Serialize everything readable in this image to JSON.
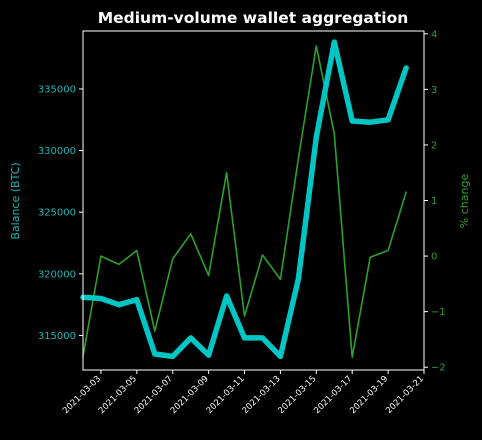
{
  "chart_data": {
    "type": "line",
    "title": "Medium-volume wallet aggregation",
    "ylabel": "Balance (BTC)",
    "y2label": "% change",
    "colors": {
      "axis_left": "#1ab5b5",
      "axis_right": "#2ca02c",
      "balance": "#00c5c5",
      "pct": "#2ca02c",
      "frame": "#ffffff"
    },
    "xlim": [
      "2021-03-02",
      "2021-03-21"
    ],
    "ylim": [
      312200,
      339700
    ],
    "y2lim": [
      -2.05,
      4.05
    ],
    "xticks": [
      "2021-03-03",
      "2021-03-05",
      "2021-03-07",
      "2021-03-09",
      "2021-03-11",
      "2021-03-13",
      "2021-03-15",
      "2021-03-17",
      "2021-03-19",
      "2021-03-21"
    ],
    "yticks": [
      315000,
      320000,
      325000,
      330000,
      335000
    ],
    "y2ticks": [
      -2,
      -1,
      0,
      1,
      2,
      3,
      4
    ],
    "x": [
      "2021-03-02",
      "2021-03-03",
      "2021-03-04",
      "2021-03-05",
      "2021-03-06",
      "2021-03-07",
      "2021-03-08",
      "2021-03-09",
      "2021-03-10",
      "2021-03-11",
      "2021-03-12",
      "2021-03-13",
      "2021-03-14",
      "2021-03-15",
      "2021-03-16",
      "2021-03-17",
      "2021-03-18",
      "2021-03-19",
      "2021-03-20"
    ],
    "series": [
      {
        "axis": "left",
        "values": [
          318100,
          318000,
          317500,
          317900,
          313500,
          313300,
          314800,
          313400,
          318200,
          314800,
          314800,
          313300,
          319600,
          331100,
          338800,
          332400,
          332300,
          332500,
          336700
        ]
      },
      {
        "axis": "right",
        "values": [
          -1.8,
          0.0,
          -0.15,
          0.1,
          -1.35,
          -0.05,
          0.4,
          -0.35,
          1.5,
          -1.08,
          0.02,
          -0.42,
          1.76,
          3.78,
          2.2,
          -1.82,
          -0.02,
          0.1,
          1.15
        ]
      }
    ]
  }
}
